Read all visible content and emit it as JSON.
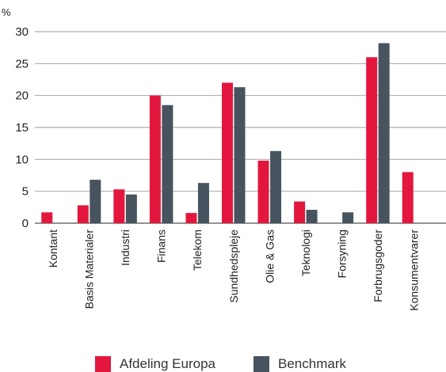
{
  "chart_data": {
    "type": "bar",
    "ylabel": "%",
    "ylim": [
      0,
      30
    ],
    "yticks": [
      0,
      5,
      10,
      15,
      20,
      25,
      30
    ],
    "grid": true,
    "categories": [
      "Kontant",
      "Basis Materialer",
      "Industri",
      "Finans",
      "Telekom",
      "Sundhedspleje",
      "Olie & Gas",
      "Teknologi",
      "Forsyning",
      "Forbrugsgoder",
      "Konsumentvarer"
    ],
    "series": [
      {
        "name": "Afdeling Europa",
        "color": "#e3173e",
        "values": [
          1.7,
          2.8,
          5.3,
          20.0,
          1.6,
          22.0,
          9.8,
          3.4,
          null,
          26.0,
          8.0
        ]
      },
      {
        "name": "Benchmark",
        "color": "#47545f",
        "values": [
          null,
          6.8,
          4.5,
          18.5,
          6.3,
          21.3,
          11.3,
          2.1,
          1.7,
          28.2,
          null
        ]
      }
    ],
    "legend_position": "bottom"
  }
}
